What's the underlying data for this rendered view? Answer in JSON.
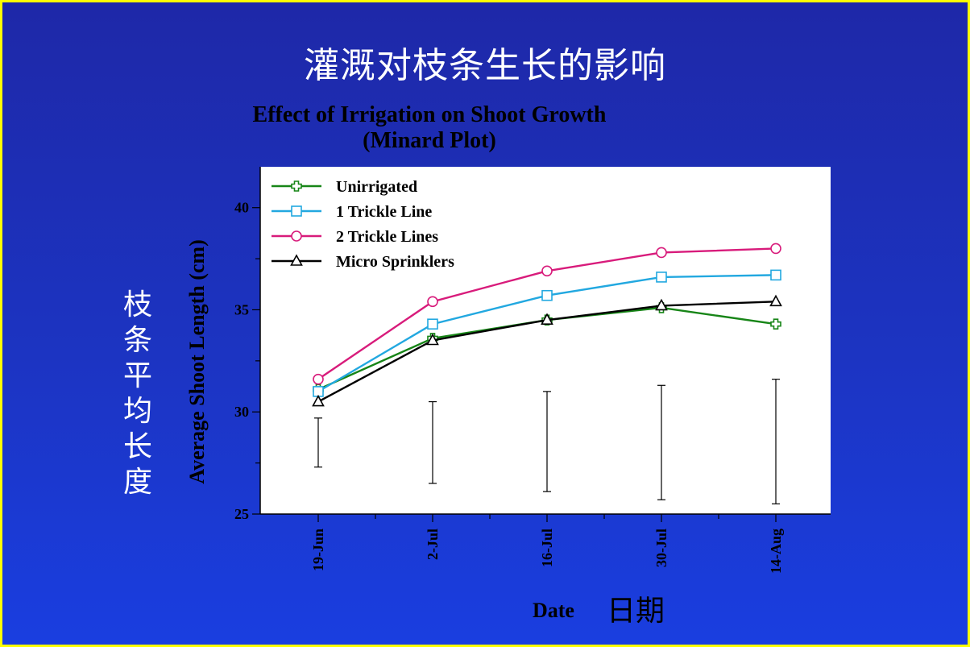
{
  "slide": {
    "title": "灌溉对枝条生长的影响",
    "side_label": [
      "枝",
      "条",
      "平",
      "均",
      "长",
      "度"
    ],
    "cn_x_label": "日期",
    "colors": {
      "background": "#1c34c2",
      "border": "#ffff00",
      "title_text": "#ffffff"
    }
  },
  "chart_data": {
    "type": "line",
    "title": "Effect of Irrigation on Shoot Growth",
    "subtitle": "(Minard Plot)",
    "xlabel": "Date",
    "ylabel": "Average Shoot Length (cm)",
    "categories": [
      "19-Jun",
      "2-Jul",
      "16-Jul",
      "30-Jul",
      "14-Aug"
    ],
    "ylim": [
      25,
      42
    ],
    "yticks": [
      25,
      30,
      35,
      40
    ],
    "legend_position": "top-left",
    "series": [
      {
        "name": "Unirrigated",
        "color": "#178517",
        "marker": "cross",
        "values": [
          31.1,
          33.6,
          34.5,
          35.1,
          34.3
        ]
      },
      {
        "name": "1 Trickle Line",
        "color": "#22a8e0",
        "marker": "square",
        "values": [
          31.0,
          34.3,
          35.7,
          36.6,
          36.7
        ]
      },
      {
        "name": "2 Trickle Lines",
        "color": "#d81b7b",
        "marker": "circle",
        "values": [
          31.6,
          35.4,
          36.9,
          37.8,
          38.0
        ]
      },
      {
        "name": "Micro Sprinklers",
        "color": "#000000",
        "marker": "triangle",
        "values": [
          30.5,
          33.5,
          34.5,
          35.2,
          35.4
        ]
      }
    ],
    "error_bars": [
      {
        "category": "19-Jun",
        "low": 27.3,
        "high": 29.7
      },
      {
        "category": "2-Jul",
        "low": 26.5,
        "high": 30.5
      },
      {
        "category": "16-Jul",
        "low": 26.1,
        "high": 31.0
      },
      {
        "category": "30-Jul",
        "low": 25.7,
        "high": 31.3
      },
      {
        "category": "14-Aug",
        "low": 25.5,
        "high": 31.6
      }
    ]
  }
}
